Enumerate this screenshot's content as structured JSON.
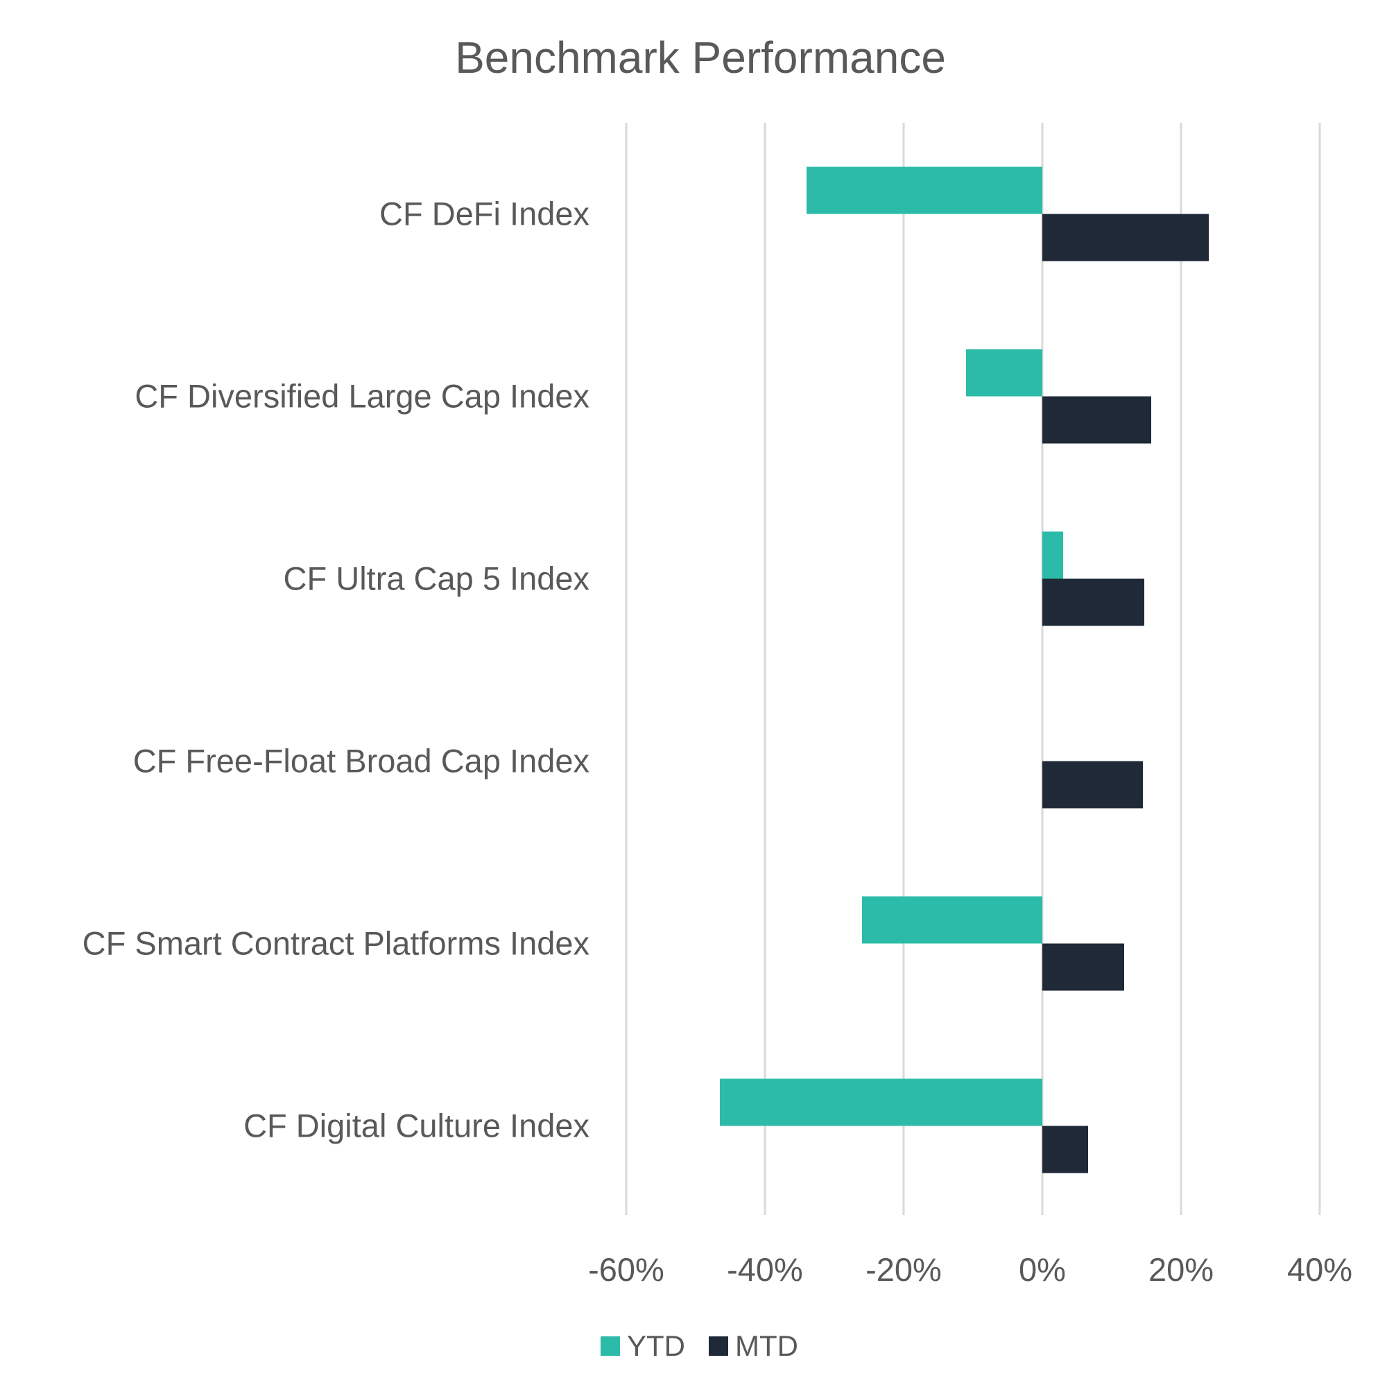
{
  "chart_data": {
    "type": "bar",
    "orientation": "horizontal",
    "title": "Benchmark Performance",
    "xlabel": "",
    "ylabel": "",
    "categories": [
      "CF DeFi Index",
      "CF Diversified Large Cap Index",
      "CF Ultra Cap 5 Index",
      "CF Free-Float Broad Cap Index",
      "CF Smart Contract Platforms Index",
      "CF Digital Culture Index"
    ],
    "series": [
      {
        "name": "YTD",
        "color": "#2bbba8",
        "values": [
          -34,
          -11,
          3,
          0,
          -26,
          -46.5
        ]
      },
      {
        "name": "MTD",
        "color": "#1f2937",
        "values": [
          24,
          15.7,
          14.7,
          14.5,
          11.8,
          6.6
        ]
      }
    ],
    "xlim": [
      -60,
      40
    ],
    "xticks": [
      -60,
      -40,
      -20,
      0,
      20,
      40
    ],
    "xtick_labels": [
      "-60%",
      "-40%",
      "-20%",
      "0%",
      "20%",
      "40%"
    ],
    "grid": true,
    "legend_position": "bottom"
  }
}
